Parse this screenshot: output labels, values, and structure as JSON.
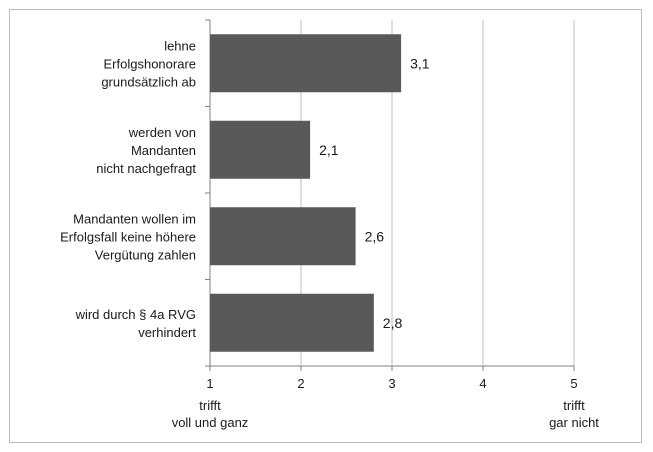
{
  "chart_data": {
    "type": "bar",
    "orientation": "horizontal",
    "categories": [
      [
        "lehne",
        "Erfolgshonorare",
        "grundsätzlich ab"
      ],
      [
        "werden von",
        "Mandanten",
        "nicht nachgefragt"
      ],
      [
        "Mandanten wollen im",
        "Erfolgsfall keine höhere",
        "Vergütung zahlen"
      ],
      [
        "wird durch § 4a RVG",
        "verhindert"
      ]
    ],
    "values": [
      3.1,
      2.1,
      2.6,
      2.8
    ],
    "value_labels": [
      "3,1",
      "2,1",
      "2,6",
      "2,8"
    ],
    "xlim": [
      1,
      5
    ],
    "xticks": [
      1,
      2,
      3,
      4,
      5
    ],
    "xtick_labels": [
      "1",
      "2",
      "3",
      "4",
      "5"
    ],
    "grid": true,
    "left_end_label": [
      "trifft",
      "voll und ganz"
    ],
    "right_end_label": [
      "trifft",
      "gar nicht"
    ],
    "bar_color": "#595959",
    "grid_color": "#bfbfbf"
  }
}
